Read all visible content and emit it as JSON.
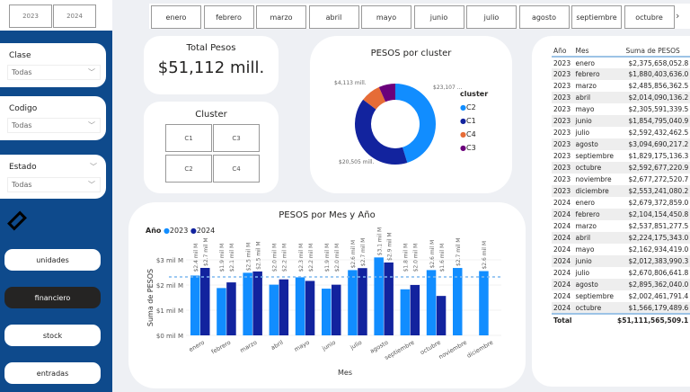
{
  "year_slicer": [
    "2023",
    "2024"
  ],
  "month_slicer": {
    "items": [
      "enero",
      "febrero",
      "marzo",
      "abril",
      "mayo",
      "junio",
      "julio",
      "agosto",
      "septiembre",
      "octubre"
    ],
    "next_icon": "chevron-right-icon"
  },
  "filters": [
    {
      "label": "Clase",
      "value": "Todas"
    },
    {
      "label": "Codigo",
      "value": "Todas"
    },
    {
      "label": "Estado",
      "value": "Todas"
    }
  ],
  "clear_icon": "eraser-icon",
  "nav": [
    {
      "label": "unidades",
      "active": false
    },
    {
      "label": "financiero",
      "active": true
    },
    {
      "label": "stock",
      "active": false
    },
    {
      "label": "entradas",
      "active": false
    }
  ],
  "total_card": {
    "title": "Total Pesos",
    "value": "$51,112 mill."
  },
  "cluster_card": {
    "title": "Cluster",
    "items": [
      "C1",
      "C3",
      "C2",
      "C4"
    ]
  },
  "colors": {
    "c2023": "#118dff",
    "c2024": "#12239e",
    "C2": "#118dff",
    "C1": "#12239e",
    "C4": "#e66c37",
    "C3": "#6b007b",
    "sidebar": "#0e4a8c"
  },
  "donut": {
    "title": "PESOS por cluster",
    "legend_title": "cluster",
    "labels": {
      "C2": "$23,107 ...",
      "C1": "$20,505 mill.",
      "C4": "$4,113 mill."
    }
  },
  "chart_data": [
    {
      "type": "pie",
      "title": "PESOS por cluster",
      "categories": [
        "C2",
        "C1",
        "C4",
        "C3"
      ],
      "values": [
        23107,
        20505,
        4113,
        3387
      ],
      "unit": "mill.",
      "legend_title": "cluster",
      "legend": "right"
    },
    {
      "type": "bar",
      "title": "PESOS por Mes y Año",
      "xlabel": "Mes",
      "ylabel": "Suma de PESOS",
      "legend_title": "Año",
      "legend": "top-left",
      "categories": [
        "enero",
        "febrero",
        "marzo",
        "abril",
        "mayo",
        "junio",
        "julio",
        "agosto",
        "septiembre",
        "octubre",
        "noviembre",
        "diciembre"
      ],
      "yticks": [
        "$0 mil M",
        "$1 mil M",
        "$2 mil M",
        "$3 mil M"
      ],
      "ylim": [
        0,
        3
      ],
      "average_line": 2.32,
      "series": [
        {
          "name": "2023",
          "values": [
            2.376,
            1.88,
            2.486,
            2.014,
            2.306,
            1.855,
            2.592,
            3.095,
            1.829,
            2.593,
            2.677,
            2.553
          ],
          "labels": [
            "$2.4 mil M",
            "$1.9 mil M",
            "$2.5 mil M",
            "$2.0 mil M",
            "$2.3 mil M",
            "$1.9 mil M",
            "$2.6 mil M",
            "$3.1 mil M",
            "$1.8 mil M",
            "$2.6 mil M",
            "$2.7 mil M",
            "$2.6 mil M"
          ]
        },
        {
          "name": "2024",
          "values": [
            2.679,
            2.104,
            2.538,
            2.224,
            2.163,
            2.012,
            2.671,
            2.895,
            2.002,
            1.566,
            null,
            null
          ],
          "labels": [
            "$2.7 mil M",
            "$2.1 mil M",
            "$2.5 mil M",
            "$2.2 mil M",
            "$2.2 mil M",
            "$2.0 mil M",
            "$2.7 mil M",
            "$2.9 mil M",
            "$2.0 mil M",
            "$1.6 mil M",
            "",
            ""
          ]
        }
      ]
    }
  ],
  "table": {
    "headers": [
      "Año",
      "Mes",
      "Suma de PESOS"
    ],
    "rows": [
      [
        "2023",
        "enero",
        "$2,375,658,052.8"
      ],
      [
        "2023",
        "febrero",
        "$1,880,403,636.0"
      ],
      [
        "2023",
        "marzo",
        "$2,485,856,362.5"
      ],
      [
        "2023",
        "abril",
        "$2,014,090,136.2"
      ],
      [
        "2023",
        "mayo",
        "$2,305,591,339.5"
      ],
      [
        "2023",
        "junio",
        "$1,854,795,040.9"
      ],
      [
        "2023",
        "julio",
        "$2,592,432,462.5"
      ],
      [
        "2023",
        "agosto",
        "$3,094,690,217.2"
      ],
      [
        "2023",
        "septiembre",
        "$1,829,175,136.3"
      ],
      [
        "2023",
        "octubre",
        "$2,592,677,220.9"
      ],
      [
        "2023",
        "noviembre",
        "$2,677,272,520.7"
      ],
      [
        "2023",
        "diciembre",
        "$2,553,241,080.2"
      ],
      [
        "2024",
        "enero",
        "$2,679,372,859.0"
      ],
      [
        "2024",
        "febrero",
        "$2,104,154,450.8"
      ],
      [
        "2024",
        "marzo",
        "$2,537,851,277.5"
      ],
      [
        "2024",
        "abril",
        "$2,224,175,343.0"
      ],
      [
        "2024",
        "mayo",
        "$2,162,934,419.0"
      ],
      [
        "2024",
        "junio",
        "$2,012,383,990.3"
      ],
      [
        "2024",
        "julio",
        "$2,670,806,641.8"
      ],
      [
        "2024",
        "agosto",
        "$2,895,362,040.0"
      ],
      [
        "2024",
        "septiembre",
        "$2,002,461,791.4"
      ],
      [
        "2024",
        "octubre",
        "$1,566,179,489.6"
      ]
    ],
    "total_label": "Total",
    "total_value": "$51,111,565,509.1"
  }
}
